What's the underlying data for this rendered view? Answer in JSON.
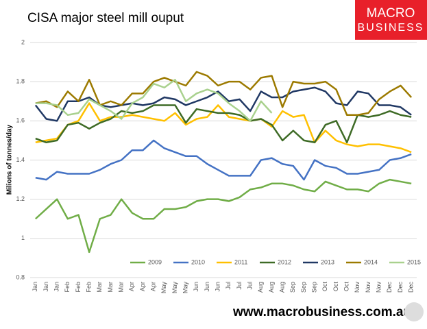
{
  "logo": [
    "MACRO",
    "BUSINESS"
  ],
  "footer_url": "www.macrobusiness.com.au",
  "chart_data": {
    "type": "line",
    "title": "CISA major steel mill ouput",
    "y_label": "Milions of tonnes/day",
    "categories": [
      "Jan",
      "Jan",
      "Jan",
      "Feb",
      "Feb",
      "Feb",
      "Mar",
      "Mar",
      "Mar",
      "Apr",
      "Apr",
      "Apr",
      "May",
      "May",
      "May",
      "Jun",
      "Jun",
      "Jun",
      "Jul",
      "Jul",
      "Jul",
      "Aug",
      "Aug",
      "Aug",
      "Sep",
      "Sep",
      "Sep",
      "Oct",
      "Oct",
      "Oct",
      "Nov",
      "Nov",
      "Nov",
      "Dec",
      "Dec",
      "Dec"
    ],
    "ylim": [
      0.8,
      2
    ],
    "yticks": [
      0.8,
      1,
      1.2,
      1.4,
      1.6,
      1.8,
      2
    ],
    "grid": true,
    "legend": "bottom",
    "series": [
      {
        "name": "2009",
        "color": "#70ad47",
        "values": [
          1.1,
          1.15,
          1.2,
          1.1,
          1.12,
          0.93,
          1.1,
          1.12,
          1.2,
          1.13,
          1.1,
          1.1,
          1.15,
          1.15,
          1.16,
          1.19,
          1.2,
          1.2,
          1.19,
          1.21,
          1.25,
          1.26,
          1.28,
          1.28,
          1.27,
          1.25,
          1.24,
          1.29,
          1.27,
          1.25,
          1.25,
          1.24,
          1.28,
          1.3,
          1.29,
          1.28
        ]
      },
      {
        "name": "2010",
        "color": "#4472c4",
        "values": [
          1.31,
          1.3,
          1.34,
          1.33,
          1.33,
          1.33,
          1.35,
          1.38,
          1.4,
          1.45,
          1.45,
          1.5,
          1.46,
          1.44,
          1.42,
          1.42,
          1.38,
          1.35,
          1.32,
          1.32,
          1.32,
          1.4,
          1.41,
          1.38,
          1.37,
          1.3,
          1.4,
          1.37,
          1.36,
          1.33,
          1.33,
          1.34,
          1.35,
          1.4,
          1.41,
          1.43
        ]
      },
      {
        "name": "2011",
        "color": "#ffc000",
        "values": [
          1.49,
          1.5,
          1.51,
          1.58,
          1.6,
          1.69,
          1.6,
          1.62,
          1.62,
          1.63,
          1.62,
          1.61,
          1.6,
          1.64,
          1.58,
          1.61,
          1.62,
          1.68,
          1.62,
          1.61,
          1.6,
          1.61,
          1.57,
          1.65,
          1.62,
          1.63,
          1.49,
          1.55,
          1.5,
          1.48,
          1.47,
          1.48,
          1.48,
          1.47,
          1.46,
          1.44
        ]
      },
      {
        "name": "2012",
        "color": "#3e6b26",
        "values": [
          1.51,
          1.49,
          1.5,
          1.58,
          1.59,
          1.56,
          1.59,
          1.61,
          1.65,
          1.64,
          1.65,
          1.68,
          1.68,
          1.68,
          1.59,
          1.66,
          1.65,
          1.64,
          1.64,
          1.63,
          1.6,
          1.61,
          1.58,
          1.5,
          1.55,
          1.5,
          1.49,
          1.58,
          1.6,
          1.49,
          1.63,
          1.62,
          1.63,
          1.65,
          1.63,
          1.62
        ]
      },
      {
        "name": "2013",
        "color": "#203864",
        "values": [
          1.68,
          1.61,
          1.6,
          1.7,
          1.7,
          1.72,
          1.68,
          1.67,
          1.68,
          1.69,
          1.68,
          1.69,
          1.72,
          1.71,
          1.68,
          1.7,
          1.72,
          1.75,
          1.7,
          1.71,
          1.65,
          1.75,
          1.72,
          1.72,
          1.75,
          1.76,
          1.77,
          1.75,
          1.69,
          1.68,
          1.75,
          1.74,
          1.68,
          1.68,
          1.67,
          1.63
        ]
      },
      {
        "name": "2014",
        "color": "#9c7a00",
        "values": [
          1.69,
          1.7,
          1.67,
          1.75,
          1.7,
          1.81,
          1.68,
          1.7,
          1.68,
          1.74,
          1.74,
          1.8,
          1.82,
          1.8,
          1.78,
          1.85,
          1.83,
          1.78,
          1.8,
          1.8,
          1.76,
          1.82,
          1.83,
          1.67,
          1.8,
          1.79,
          1.79,
          1.8,
          1.76,
          1.63,
          1.63,
          1.64,
          1.71,
          1.75,
          1.78,
          1.72
        ]
      },
      {
        "name": "2015",
        "color": "#a9d18e",
        "values": [
          1.69,
          1.69,
          1.68,
          1.63,
          1.64,
          1.71,
          1.68,
          1.65,
          1.61,
          1.69,
          1.72,
          1.79,
          1.77,
          1.81,
          1.7,
          1.74,
          1.76,
          1.74,
          1.69,
          1.65,
          1.6,
          1.7,
          1.64,
          null,
          null,
          null,
          null,
          null,
          null,
          null,
          null,
          null,
          null,
          null,
          null,
          null
        ]
      }
    ]
  }
}
